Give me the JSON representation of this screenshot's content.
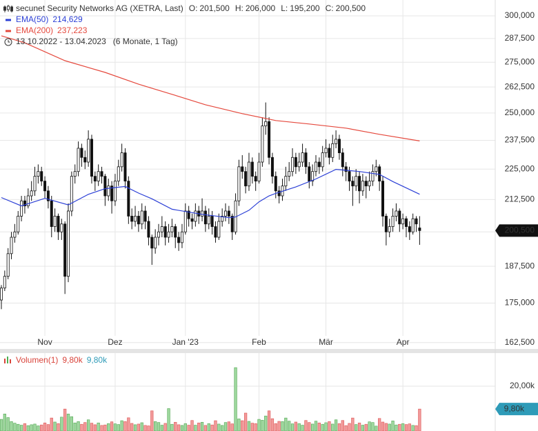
{
  "chart_data": {
    "type": "candlestick",
    "title": "secunet Security Networks AG (XETRA, Last)",
    "ohlc_names": [
      "O:",
      "H:",
      "L:",
      "C:"
    ],
    "ohlc_labels": [
      "201,500",
      "206,000",
      "195,200",
      "200,500"
    ],
    "date_range": "13.10.2022 - 13.04.2023",
    "period": "(6 Monate, 1 Tag)",
    "yscale": "log",
    "ylim": [
      160350,
      309060
    ],
    "yticks": [
      {
        "value": 162500,
        "label": "162,500"
      },
      {
        "value": 175000,
        "label": "175,000"
      },
      {
        "value": 187500,
        "label": "187,500"
      },
      {
        "value": 200000,
        "label": "200,000"
      },
      {
        "value": 212500,
        "label": "212,500"
      },
      {
        "value": 225000,
        "label": "225,000"
      },
      {
        "value": 237500,
        "label": "237,500"
      },
      {
        "value": 250000,
        "label": "250,000"
      },
      {
        "value": 262500,
        "label": "262,500"
      },
      {
        "value": 275000,
        "label": "275,000"
      },
      {
        "value": 287500,
        "label": "287,500"
      },
      {
        "value": 300000,
        "label": "300,000"
      }
    ],
    "xlim": [
      -0.41,
      147.6
    ],
    "xticks": [
      {
        "value": 13,
        "label": "Nov"
      },
      {
        "value": 34,
        "label": "Dez"
      },
      {
        "value": 55,
        "label": "Jan '23"
      },
      {
        "value": 77,
        "label": "Feb"
      },
      {
        "value": 97,
        "label": "Mär"
      },
      {
        "value": 120,
        "label": "Apr"
      }
    ],
    "grid": true,
    "up_color": "#ffffff",
    "down_color": "#111111",
    "last_label": "200,500",
    "candles": [
      [
        176000,
        181000,
        173000,
        180000
      ],
      [
        180000,
        186000,
        179000,
        184000
      ],
      [
        184000,
        194000,
        183000,
        192000
      ],
      [
        192000,
        200000,
        190000,
        198000
      ],
      [
        198000,
        203000,
        196000,
        200000
      ],
      [
        200000,
        208000,
        199000,
        206000
      ],
      [
        206000,
        214000,
        204000,
        212000
      ],
      [
        212000,
        214000,
        207000,
        210000
      ],
      [
        210000,
        217000,
        209000,
        214000
      ],
      [
        214000,
        220000,
        212000,
        216000
      ],
      [
        216000,
        226000,
        214000,
        222000
      ],
      [
        222000,
        227000,
        219000,
        224000
      ],
      [
        224000,
        226000,
        218000,
        220000
      ],
      [
        220000,
        222000,
        213000,
        216000
      ],
      [
        216000,
        218000,
        209000,
        212000
      ],
      [
        212000,
        214000,
        198000,
        202000
      ],
      [
        202000,
        209000,
        200000,
        206000
      ],
      [
        206000,
        207000,
        197000,
        200000
      ],
      [
        200000,
        205000,
        197000,
        203000
      ],
      [
        203000,
        204000,
        178000,
        184000
      ],
      [
        184000,
        211000,
        182000,
        208000
      ],
      [
        208000,
        224000,
        206000,
        222000
      ],
      [
        222000,
        227000,
        219000,
        224000
      ],
      [
        224000,
        237000,
        222000,
        234000
      ],
      [
        234000,
        236000,
        226000,
        230000
      ],
      [
        230000,
        233000,
        225000,
        228000
      ],
      [
        228000,
        242000,
        226000,
        238000
      ],
      [
        238000,
        240000,
        219000,
        222000
      ],
      [
        222000,
        224000,
        216000,
        220000
      ],
      [
        220000,
        227000,
        218000,
        224000
      ],
      [
        224000,
        226000,
        219000,
        222000
      ],
      [
        222000,
        223000,
        210000,
        214000
      ],
      [
        214000,
        221000,
        212000,
        218000
      ],
      [
        218000,
        220000,
        207000,
        212000
      ],
      [
        212000,
        223000,
        210000,
        220000
      ],
      [
        220000,
        229000,
        218000,
        226000
      ],
      [
        226000,
        236000,
        224000,
        232000
      ],
      [
        232000,
        234000,
        217000,
        220000
      ],
      [
        220000,
        222000,
        203000,
        206000
      ],
      [
        206000,
        209000,
        201000,
        204000
      ],
      [
        204000,
        210000,
        202000,
        206000
      ],
      [
        206000,
        208000,
        200000,
        203000
      ],
      [
        203000,
        211000,
        201000,
        208000
      ],
      [
        208000,
        210000,
        201000,
        204000
      ],
      [
        204000,
        206000,
        195000,
        198000
      ],
      [
        198000,
        199000,
        188000,
        194000
      ],
      [
        194000,
        201000,
        192000,
        198000
      ],
      [
        198000,
        203000,
        195000,
        200000
      ],
      [
        200000,
        206000,
        198000,
        202000
      ],
      [
        202000,
        204000,
        195000,
        198000
      ],
      [
        198000,
        203000,
        196000,
        200000
      ],
      [
        200000,
        205000,
        198000,
        202000
      ],
      [
        202000,
        203000,
        194000,
        198000
      ],
      [
        198000,
        200000,
        193000,
        196000
      ],
      [
        196000,
        203000,
        194000,
        200000
      ],
      [
        200000,
        211000,
        199000,
        208000
      ],
      [
        208000,
        210000,
        202000,
        205000
      ],
      [
        205000,
        207000,
        201000,
        204000
      ],
      [
        204000,
        211000,
        202000,
        208000
      ],
      [
        208000,
        210000,
        203000,
        206000
      ],
      [
        206000,
        213000,
        204000,
        208000
      ],
      [
        208000,
        210000,
        200000,
        203000
      ],
      [
        203000,
        209000,
        201000,
        206000
      ],
      [
        206000,
        208000,
        199000,
        202000
      ],
      [
        202000,
        204000,
        196000,
        198000
      ],
      [
        198000,
        207000,
        197000,
        204000
      ],
      [
        204000,
        209000,
        202000,
        206000
      ],
      [
        206000,
        211000,
        204000,
        208000
      ],
      [
        208000,
        210000,
        203000,
        206000
      ],
      [
        206000,
        207000,
        197000,
        200000
      ],
      [
        200000,
        215000,
        199000,
        212000
      ],
      [
        212000,
        229000,
        210000,
        226000
      ],
      [
        226000,
        231000,
        221000,
        224000
      ],
      [
        224000,
        226000,
        215000,
        218000
      ],
      [
        218000,
        232000,
        216000,
        228000
      ],
      [
        228000,
        230000,
        219000,
        222000
      ],
      [
        222000,
        224000,
        216000,
        220000
      ],
      [
        220000,
        232000,
        219000,
        228000
      ],
      [
        228000,
        248000,
        226000,
        244000
      ],
      [
        244000,
        255000,
        240000,
        246000
      ],
      [
        246000,
        248000,
        227000,
        230000
      ],
      [
        230000,
        232000,
        219000,
        222000
      ],
      [
        222000,
        224000,
        213000,
        216000
      ],
      [
        216000,
        218000,
        211000,
        214000
      ],
      [
        214000,
        221000,
        212000,
        218000
      ],
      [
        218000,
        226000,
        216000,
        222000
      ],
      [
        222000,
        228000,
        220000,
        224000
      ],
      [
        224000,
        234000,
        222000,
        230000
      ],
      [
        230000,
        232000,
        223000,
        226000
      ],
      [
        226000,
        232000,
        224000,
        228000
      ],
      [
        228000,
        236000,
        226000,
        232000
      ],
      [
        232000,
        234000,
        223000,
        226000
      ],
      [
        226000,
        228000,
        217000,
        220000
      ],
      [
        220000,
        227000,
        218000,
        224000
      ],
      [
        224000,
        231000,
        222000,
        228000
      ],
      [
        228000,
        230000,
        223000,
        226000
      ],
      [
        226000,
        235000,
        224000,
        232000
      ],
      [
        232000,
        238000,
        230000,
        234000
      ],
      [
        234000,
        236000,
        227000,
        230000
      ],
      [
        230000,
        240000,
        228000,
        236000
      ],
      [
        236000,
        242000,
        234000,
        238000
      ],
      [
        238000,
        240000,
        229000,
        232000
      ],
      [
        232000,
        234000,
        222000,
        226000
      ],
      [
        226000,
        228000,
        220000,
        224000
      ],
      [
        224000,
        226000,
        216000,
        220000
      ],
      [
        220000,
        222000,
        210000,
        218000
      ],
      [
        218000,
        225000,
        216000,
        222000
      ],
      [
        222000,
        224000,
        211000,
        216000
      ],
      [
        216000,
        223000,
        214000,
        220000
      ],
      [
        220000,
        222000,
        213000,
        218000
      ],
      [
        218000,
        224000,
        216000,
        220000
      ],
      [
        220000,
        227000,
        218000,
        224000
      ],
      [
        224000,
        229000,
        222000,
        226000
      ],
      [
        226000,
        227000,
        216000,
        220000
      ],
      [
        220000,
        222000,
        202000,
        206000
      ],
      [
        206000,
        207000,
        195000,
        200000
      ],
      [
        200000,
        205000,
        198000,
        202000
      ],
      [
        202000,
        209000,
        200000,
        206000
      ],
      [
        206000,
        211000,
        204000,
        208000
      ],
      [
        208000,
        209000,
        200000,
        203000
      ],
      [
        203000,
        207000,
        201000,
        205000
      ],
      [
        205000,
        206000,
        198000,
        202000
      ],
      [
        202000,
        204000,
        197000,
        200000
      ],
      [
        200000,
        207000,
        199000,
        205000
      ],
      [
        205000,
        206000,
        200000,
        203000
      ],
      [
        201500,
        206000,
        195200,
        200500
      ]
    ],
    "series": [
      {
        "name": "EMA(50)",
        "color": "#2b3fd6",
        "last_label": "214,629",
        "x": [
          0,
          6,
          13,
          20,
          26,
          31,
          37,
          41,
          45,
          51,
          60,
          68,
          70,
          74,
          77,
          80,
          82,
          88,
          94,
          100,
          107,
          113,
          117,
          125
        ],
        "values": [
          213300,
          210000,
          213000,
          210400,
          214600,
          216900,
          217800,
          215100,
          212800,
          208700,
          206700,
          205400,
          205700,
          208300,
          211600,
          214000,
          215000,
          217600,
          220900,
          224900,
          224000,
          222800,
          219800,
          214629
        ]
      },
      {
        "name": "EMA(200)",
        "color": "#e5483c",
        "last_label": "237,223",
        "x": [
          0,
          7,
          19,
          31,
          41,
          51,
          61,
          72,
          82,
          92,
          103,
          113,
          125
        ],
        "values": [
          289000,
          285200,
          275800,
          269800,
          263900,
          258900,
          253900,
          249700,
          246500,
          244900,
          243000,
          240200,
          237223
        ]
      }
    ],
    "volume": {
      "name": "Volumen(1)",
      "legend_values": [
        "9,80k",
        "9,80k"
      ],
      "legend_colors": [
        "#d9433a",
        "#2e9bb8"
      ],
      "last_label": "9,80k",
      "label_color": "#2e9bb8",
      "up_color": "#9fd89f",
      "down_color": "#f29b9b",
      "ylim": [
        0,
        34800
      ],
      "yticks": [
        {
          "value": 20000,
          "label": "20,00k"
        }
      ],
      "values": [
        5200,
        7600,
        6000,
        4200,
        3500,
        3000,
        2600,
        3300,
        2400,
        2800,
        3100,
        2300,
        2700,
        3600,
        2900,
        5800,
        4000,
        3300,
        6200,
        9800,
        7600,
        6400,
        3600,
        4200,
        3000,
        3800,
        5000,
        3500,
        2800,
        3600,
        2500,
        2700,
        3300,
        4100,
        3200,
        2900,
        4600,
        4200,
        5900,
        3400,
        2800,
        3100,
        3700,
        2500,
        2300,
        9000,
        4200,
        3800,
        2600,
        3400,
        10000,
        3000,
        3900,
        2800,
        2500,
        3300,
        2600,
        4700,
        2600,
        3600,
        3900,
        2500,
        3300,
        2700,
        4600,
        3100,
        2500,
        3800,
        4100,
        3200,
        28300,
        5400,
        4600,
        8000,
        4300,
        3500,
        3300,
        5200,
        4800,
        6700,
        9000,
        5500,
        3300,
        4300,
        4200,
        5800,
        4400,
        3200,
        4000,
        3300,
        2600,
        4700,
        3800,
        3100,
        4400,
        3600,
        3000,
        3700,
        4200,
        3100,
        5000,
        3300,
        4700,
        2400,
        3400,
        5800,
        2900,
        3600,
        2600,
        3000,
        4100,
        3800,
        2200,
        5600,
        4000,
        3400,
        3100,
        4500,
        2700,
        3000,
        3300,
        2900,
        3200,
        2500,
        2400,
        9800
      ]
    }
  }
}
